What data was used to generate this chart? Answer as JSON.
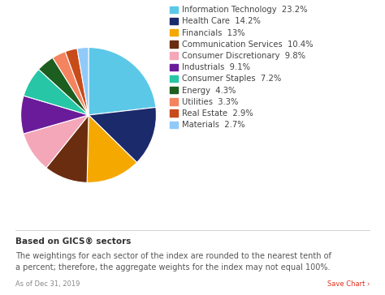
{
  "sectors": [
    {
      "label": "Information Technology",
      "value": 23.2,
      "color": "#5BC8E8"
    },
    {
      "label": "Health Care",
      "value": 14.2,
      "color": "#1B2A6B"
    },
    {
      "label": "Financials",
      "value": 13.0,
      "color": "#F5A800"
    },
    {
      "label": "Communication Services",
      "value": 10.4,
      "color": "#6B2D0F"
    },
    {
      "label": "Consumer Discretionary",
      "value": 9.8,
      "color": "#F4A7B9"
    },
    {
      "label": "Industrials",
      "value": 9.1,
      "color": "#6A1B9A"
    },
    {
      "label": "Consumer Staples",
      "value": 7.2,
      "color": "#26C6A6"
    },
    {
      "label": "Energy",
      "value": 4.3,
      "color": "#1B5E20"
    },
    {
      "label": "Utilities",
      "value": 3.3,
      "color": "#F4845F"
    },
    {
      "label": "Real Estate",
      "value": 2.9,
      "color": "#C84B1A"
    },
    {
      "label": "Materials",
      "value": 2.7,
      "color": "#90CAF9"
    }
  ],
  "background_color": "#FFFFFF",
  "footnote_bold": "Based on GICS® sectors",
  "footnote_text": "The weightings for each sector of the index are rounded to the nearest tenth of\na percent; therefore, the aggregate weights for the index may not equal 100%.",
  "date_text": "As of Dec 31, 2019",
  "save_text": "Save Chart ›",
  "legend_fontsize": 7.2,
  "footnote_fontsize": 7.5
}
